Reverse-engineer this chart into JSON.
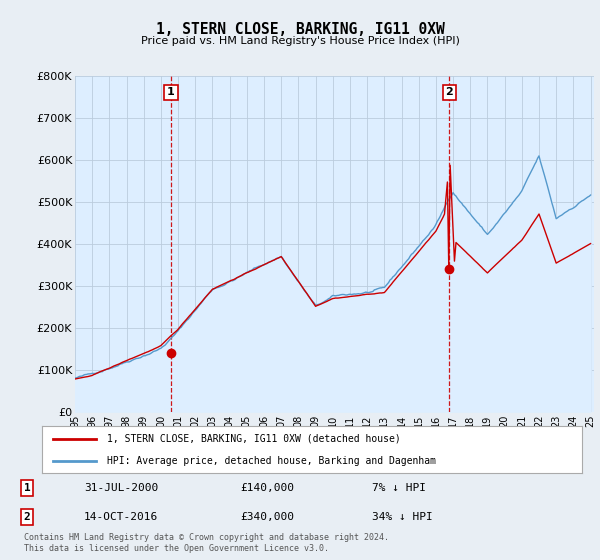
{
  "title": "1, STERN CLOSE, BARKING, IG11 0XW",
  "subtitle": "Price paid vs. HM Land Registry's House Price Index (HPI)",
  "ylim": [
    0,
    800000
  ],
  "yticks": [
    0,
    100000,
    200000,
    300000,
    400000,
    500000,
    600000,
    700000,
    800000
  ],
  "ytick_labels": [
    "£0",
    "£100K",
    "£200K",
    "£300K",
    "£400K",
    "£500K",
    "£600K",
    "£700K",
    "£800K"
  ],
  "hpi_color": "#5599cc",
  "hpi_fill_color": "#ddeeff",
  "sale_color": "#cc0000",
  "marker1_x": 2000.58,
  "marker1_y": 140000,
  "marker2_x": 2016.79,
  "marker2_y": 340000,
  "legend_label1": "1, STERN CLOSE, BARKING, IG11 0XW (detached house)",
  "legend_label2": "HPI: Average price, detached house, Barking and Dagenham",
  "note1_num": "1",
  "note1_date": "31-JUL-2000",
  "note1_price": "£140,000",
  "note1_hpi": "7% ↓ HPI",
  "note2_num": "2",
  "note2_date": "14-OCT-2016",
  "note2_price": "£340,000",
  "note2_hpi": "34% ↓ HPI",
  "footer": "Contains HM Land Registry data © Crown copyright and database right 2024.\nThis data is licensed under the Open Government Licence v3.0.",
  "bg_color": "#e8eef4",
  "plot_bg_color": "#ddeeff",
  "grid_color": "#bbccdd",
  "xtick_years": [
    1995,
    1996,
    1997,
    1998,
    1999,
    2000,
    2001,
    2002,
    2003,
    2004,
    2005,
    2006,
    2007,
    2008,
    2009,
    2010,
    2011,
    2012,
    2013,
    2014,
    2015,
    2016,
    2017,
    2018,
    2019,
    2020,
    2021,
    2022,
    2023,
    2024,
    2025
  ],
  "hpi_x": [
    1995.0,
    1995.08,
    1995.17,
    1995.25,
    1995.33,
    1995.42,
    1995.5,
    1995.58,
    1995.67,
    1995.75,
    1995.83,
    1995.92,
    1996.0,
    1996.08,
    1996.17,
    1996.25,
    1996.33,
    1996.42,
    1996.5,
    1996.58,
    1996.67,
    1996.75,
    1996.83,
    1996.92,
    1997.0,
    1997.08,
    1997.17,
    1997.25,
    1997.33,
    1997.42,
    1997.5,
    1997.58,
    1997.67,
    1997.75,
    1997.83,
    1997.92,
    1998.0,
    1998.08,
    1998.17,
    1998.25,
    1998.33,
    1998.42,
    1998.5,
    1998.58,
    1998.67,
    1998.75,
    1998.83,
    1998.92,
    1999.0,
    1999.08,
    1999.17,
    1999.25,
    1999.33,
    1999.42,
    1999.5,
    1999.58,
    1999.67,
    1999.75,
    1999.83,
    1999.92,
    2000.0,
    2000.08,
    2000.17,
    2000.25,
    2000.33,
    2000.42,
    2000.5,
    2000.58,
    2000.67,
    2000.75,
    2000.83,
    2000.92,
    2001.0,
    2001.08,
    2001.17,
    2001.25,
    2001.33,
    2001.42,
    2001.5,
    2001.58,
    2001.67,
    2001.75,
    2001.83,
    2001.92,
    2002.0,
    2002.08,
    2002.17,
    2002.25,
    2002.33,
    2002.42,
    2002.5,
    2002.58,
    2002.67,
    2002.75,
    2002.83,
    2002.92,
    2003.0,
    2003.08,
    2003.17,
    2003.25,
    2003.33,
    2003.42,
    2003.5,
    2003.58,
    2003.67,
    2003.75,
    2003.83,
    2003.92,
    2004.0,
    2004.08,
    2004.17,
    2004.25,
    2004.33,
    2004.42,
    2004.5,
    2004.58,
    2004.67,
    2004.75,
    2004.83,
    2004.92,
    2005.0,
    2005.08,
    2005.17,
    2005.25,
    2005.33,
    2005.42,
    2005.5,
    2005.58,
    2005.67,
    2005.75,
    2005.83,
    2005.92,
    2006.0,
    2006.08,
    2006.17,
    2006.25,
    2006.33,
    2006.42,
    2006.5,
    2006.58,
    2006.67,
    2006.75,
    2006.83,
    2006.92,
    2007.0,
    2007.08,
    2007.17,
    2007.25,
    2007.33,
    2007.42,
    2007.5,
    2007.58,
    2007.67,
    2007.75,
    2007.83,
    2007.92,
    2008.0,
    2008.08,
    2008.17,
    2008.25,
    2008.33,
    2008.42,
    2008.5,
    2008.58,
    2008.67,
    2008.75,
    2008.83,
    2008.92,
    2009.0,
    2009.08,
    2009.17,
    2009.25,
    2009.33,
    2009.42,
    2009.5,
    2009.58,
    2009.67,
    2009.75,
    2009.83,
    2009.92,
    2010.0,
    2010.08,
    2010.17,
    2010.25,
    2010.33,
    2010.42,
    2010.5,
    2010.58,
    2010.67,
    2010.75,
    2010.83,
    2010.92,
    2011.0,
    2011.08,
    2011.17,
    2011.25,
    2011.33,
    2011.42,
    2011.5,
    2011.58,
    2011.67,
    2011.75,
    2011.83,
    2011.92,
    2012.0,
    2012.08,
    2012.17,
    2012.25,
    2012.33,
    2012.42,
    2012.5,
    2012.58,
    2012.67,
    2012.75,
    2012.83,
    2012.92,
    2013.0,
    2013.08,
    2013.17,
    2013.25,
    2013.33,
    2013.42,
    2013.5,
    2013.58,
    2013.67,
    2013.75,
    2013.83,
    2013.92,
    2014.0,
    2014.08,
    2014.17,
    2014.25,
    2014.33,
    2014.42,
    2014.5,
    2014.58,
    2014.67,
    2014.75,
    2014.83,
    2014.92,
    2015.0,
    2015.08,
    2015.17,
    2015.25,
    2015.33,
    2015.42,
    2015.5,
    2015.58,
    2015.67,
    2015.75,
    2015.83,
    2015.92,
    2016.0,
    2016.08,
    2016.17,
    2016.25,
    2016.33,
    2016.42,
    2016.5,
    2016.58,
    2016.67,
    2016.75,
    2016.83,
    2016.92,
    2017.0,
    2017.08,
    2017.17,
    2017.25,
    2017.33,
    2017.42,
    2017.5,
    2017.58,
    2017.67,
    2017.75,
    2017.83,
    2017.92,
    2018.0,
    2018.08,
    2018.17,
    2018.25,
    2018.33,
    2018.42,
    2018.5,
    2018.58,
    2018.67,
    2018.75,
    2018.83,
    2018.92,
    2019.0,
    2019.08,
    2019.17,
    2019.25,
    2019.33,
    2019.42,
    2019.5,
    2019.58,
    2019.67,
    2019.75,
    2019.83,
    2019.92,
    2020.0,
    2020.08,
    2020.17,
    2020.25,
    2020.33,
    2020.42,
    2020.5,
    2020.58,
    2020.67,
    2020.75,
    2020.83,
    2020.92,
    2021.0,
    2021.08,
    2021.17,
    2021.25,
    2021.33,
    2021.42,
    2021.5,
    2021.58,
    2021.67,
    2021.75,
    2021.83,
    2021.92,
    2022.0,
    2022.08,
    2022.17,
    2022.25,
    2022.33,
    2022.42,
    2022.5,
    2022.58,
    2022.67,
    2022.75,
    2022.83,
    2022.92,
    2023.0,
    2023.08,
    2023.17,
    2023.25,
    2023.33,
    2023.42,
    2023.5,
    2023.58,
    2023.67,
    2023.75,
    2023.83,
    2023.92,
    2024.0,
    2024.08,
    2024.17,
    2024.25,
    2024.33,
    2024.42,
    2024.5,
    2024.58,
    2024.67,
    2024.75,
    2024.83,
    2024.92,
    2025.0
  ]
}
